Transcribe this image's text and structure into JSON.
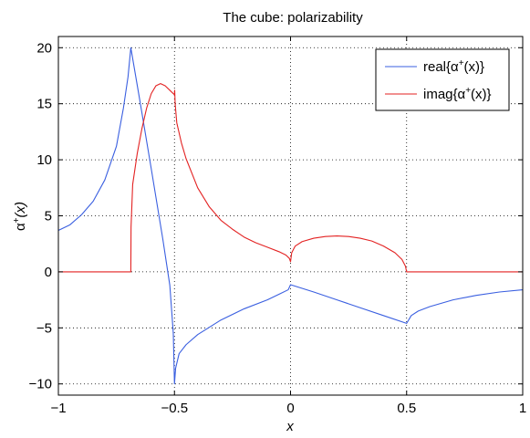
{
  "figure": {
    "background": "#ffffff"
  },
  "chart_data": {
    "type": "line",
    "title": "The cube: polarizability",
    "xlabel": "x",
    "ylabel_base": "α",
    "ylabel_sup": "+",
    "ylabel_tail": "(x)",
    "xlim": [
      -1,
      1
    ],
    "ylim": [
      -11,
      21
    ],
    "xticks": [
      -1,
      -0.5,
      0,
      0.5,
      1
    ],
    "xtick_labels": [
      "−1",
      "−0.5",
      "0",
      "0.5",
      "1"
    ],
    "yticks": [
      -10,
      -5,
      0,
      5,
      10,
      15,
      20
    ],
    "ytick_labels": [
      "−10",
      "−5",
      "0",
      "5",
      "10",
      "15",
      "20"
    ],
    "grid": "dotted",
    "legend_position": "top-right",
    "series": [
      {
        "name": "real",
        "legend_prefix": "real{α",
        "legend_sup": "+",
        "legend_suffix": "(x)}",
        "color": "#3a5fe0",
        "points": [
          [
            -1.0,
            3.7
          ],
          [
            -0.95,
            4.2
          ],
          [
            -0.9,
            5.1
          ],
          [
            -0.85,
            6.3
          ],
          [
            -0.8,
            8.2
          ],
          [
            -0.75,
            11.2
          ],
          [
            -0.72,
            14.6
          ],
          [
            -0.7,
            17.4
          ],
          [
            -0.688,
            20.0
          ],
          [
            -0.65,
            15.4
          ],
          [
            -0.6,
            9.2
          ],
          [
            -0.55,
            2.9
          ],
          [
            -0.52,
            -1.2
          ],
          [
            -0.505,
            -5.5
          ],
          [
            -0.5,
            -10.0
          ],
          [
            -0.495,
            -8.6
          ],
          [
            -0.48,
            -7.3
          ],
          [
            -0.45,
            -6.5
          ],
          [
            -0.4,
            -5.6
          ],
          [
            -0.3,
            -4.3
          ],
          [
            -0.2,
            -3.3
          ],
          [
            -0.1,
            -2.5
          ],
          [
            -0.05,
            -2.0
          ],
          [
            -0.01,
            -1.6
          ],
          [
            0.0,
            -1.15
          ],
          [
            0.1,
            -1.8
          ],
          [
            0.2,
            -2.5
          ],
          [
            0.3,
            -3.2
          ],
          [
            0.4,
            -3.9
          ],
          [
            0.5,
            -4.6
          ],
          [
            0.52,
            -3.9
          ],
          [
            0.55,
            -3.5
          ],
          [
            0.6,
            -3.1
          ],
          [
            0.7,
            -2.5
          ],
          [
            0.8,
            -2.1
          ],
          [
            0.9,
            -1.8
          ],
          [
            1.0,
            -1.6
          ]
        ]
      },
      {
        "name": "imag",
        "legend_prefix": "imag{α",
        "legend_sup": "+",
        "legend_suffix": "(x)}",
        "color": "#e32222",
        "points": [
          [
            -1.0,
            0.0
          ],
          [
            -0.688,
            0.0
          ],
          [
            -0.687,
            4.0
          ],
          [
            -0.68,
            7.8
          ],
          [
            -0.66,
            10.6
          ],
          [
            -0.64,
            12.8
          ],
          [
            -0.62,
            14.6
          ],
          [
            -0.6,
            15.9
          ],
          [
            -0.58,
            16.6
          ],
          [
            -0.56,
            16.8
          ],
          [
            -0.54,
            16.6
          ],
          [
            -0.52,
            16.2
          ],
          [
            -0.5,
            15.8
          ],
          [
            -0.499,
            16.2
          ],
          [
            -0.497,
            15.0
          ],
          [
            -0.49,
            13.3
          ],
          [
            -0.47,
            11.5
          ],
          [
            -0.45,
            10.1
          ],
          [
            -0.4,
            7.5
          ],
          [
            -0.35,
            5.8
          ],
          [
            -0.3,
            4.6
          ],
          [
            -0.25,
            3.8
          ],
          [
            -0.2,
            3.1
          ],
          [
            -0.15,
            2.6
          ],
          [
            -0.1,
            2.2
          ],
          [
            -0.05,
            1.8
          ],
          [
            -0.02,
            1.5
          ],
          [
            -0.005,
            1.2
          ],
          [
            0.0,
            0.9
          ],
          [
            0.005,
            1.7
          ],
          [
            0.02,
            2.3
          ],
          [
            0.05,
            2.7
          ],
          [
            0.1,
            3.0
          ],
          [
            0.15,
            3.15
          ],
          [
            0.2,
            3.2
          ],
          [
            0.25,
            3.15
          ],
          [
            0.3,
            3.0
          ],
          [
            0.35,
            2.75
          ],
          [
            0.4,
            2.3
          ],
          [
            0.45,
            1.7
          ],
          [
            0.48,
            1.1
          ],
          [
            0.495,
            0.5
          ],
          [
            0.5,
            0.0
          ],
          [
            1.0,
            0.0
          ]
        ]
      }
    ]
  }
}
